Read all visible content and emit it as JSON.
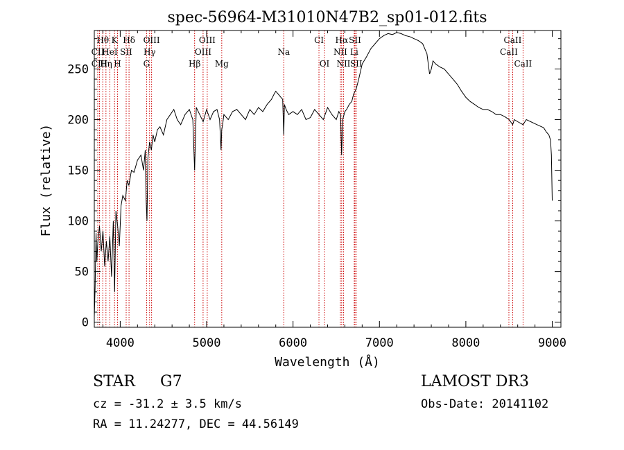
{
  "chart_data": {
    "type": "line",
    "title": "spec-56964-M31010N47B2_sp01-012.fits",
    "xlabel": "Wavelength (Å)",
    "ylabel": "Flux (relative)",
    "xlim": [
      3700,
      9100
    ],
    "ylim": [
      -5,
      288
    ],
    "x_ticks": [
      4000,
      5000,
      6000,
      7000,
      8000,
      9000
    ],
    "y_ticks": [
      0,
      50,
      100,
      150,
      200,
      250
    ],
    "grid": false,
    "line_color": "#000000",
    "marker_color": "#cc0000",
    "series": [
      {
        "x": [
          3700,
          3710,
          3720,
          3730,
          3740,
          3760,
          3780,
          3800,
          3820,
          3840,
          3860,
          3880,
          3900,
          3920,
          3935,
          3950,
          3970,
          3990,
          4010,
          4030,
          4060,
          4080,
          4100,
          4130,
          4160,
          4200,
          4240,
          4270,
          4290,
          4300,
          4310,
          4320,
          4340,
          4360,
          4380,
          4400,
          4430,
          4460,
          4500,
          4540,
          4580,
          4620,
          4660,
          4700,
          4750,
          4800,
          4840,
          4861,
          4880,
          4920,
          4960,
          5000,
          5040,
          5080,
          5120,
          5150,
          5167,
          5175,
          5185,
          5200,
          5250,
          5300,
          5350,
          5400,
          5450,
          5500,
          5550,
          5600,
          5650,
          5700,
          5750,
          5780,
          5800,
          5830,
          5860,
          5880,
          5893,
          5900,
          5920,
          5950,
          6000,
          6050,
          6100,
          6150,
          6200,
          6250,
          6300,
          6350,
          6400,
          6450,
          6500,
          6530,
          6550,
          6562,
          6575,
          6590,
          6600,
          6620,
          6650,
          6680,
          6700,
          6730,
          6760,
          6800,
          6850,
          6900,
          6950,
          7000,
          7050,
          7100,
          7150,
          7200,
          7250,
          7300,
          7350,
          7400,
          7450,
          7500,
          7550,
          7580,
          7600,
          7620,
          7650,
          7700,
          7750,
          7800,
          7850,
          7900,
          7950,
          8000,
          8050,
          8100,
          8150,
          8200,
          8250,
          8300,
          8350,
          8400,
          8450,
          8500,
          8542,
          8560,
          8600,
          8662,
          8700,
          8750,
          8800,
          8850,
          8900,
          8930,
          8960,
          8980,
          8990,
          9000
        ],
        "y": [
          5,
          35,
          88,
          60,
          78,
          95,
          70,
          90,
          55,
          80,
          60,
          85,
          45,
          100,
          30,
          110,
          95,
          75,
          115,
          125,
          120,
          140,
          135,
          150,
          148,
          160,
          165,
          150,
          170,
          120,
          100,
          162,
          178,
          170,
          185,
          178,
          190,
          193,
          185,
          200,
          205,
          210,
          200,
          195,
          205,
          210,
          200,
          150,
          212,
          205,
          198,
          210,
          200,
          208,
          210,
          200,
          170,
          190,
          195,
          205,
          200,
          208,
          210,
          205,
          200,
          210,
          205,
          212,
          208,
          215,
          220,
          225,
          228,
          225,
          222,
          220,
          185,
          215,
          210,
          205,
          208,
          205,
          210,
          200,
          202,
          210,
          205,
          200,
          212,
          205,
          200,
          208,
          205,
          165,
          200,
          205,
          208,
          210,
          215,
          218,
          225,
          230,
          240,
          255,
          262,
          270,
          275,
          280,
          283,
          285,
          284,
          286,
          285,
          283,
          282,
          280,
          278,
          275,
          265,
          245,
          250,
          258,
          255,
          252,
          250,
          245,
          240,
          235,
          228,
          222,
          218,
          215,
          212,
          210,
          210,
          208,
          205,
          205,
          203,
          200,
          195,
          200,
          198,
          195,
          200,
          198,
          196,
          194,
          192,
          188,
          185,
          180,
          165,
          120
        ]
      }
    ],
    "lines_top_row": [
      {
        "label": "Hθ",
        "x": 3798
      },
      {
        "label": "K",
        "x": 3934
      },
      {
        "label": "Hδ",
        "x": 4102
      },
      {
        "label": "OIII",
        "x": 4363
      },
      {
        "label": "OIII",
        "x": 5007
      },
      {
        "label": "CI",
        "x": 6300
      },
      {
        "label": "Hα",
        "x": 6563
      },
      {
        "label": "SII",
        "x": 6717
      },
      {
        "label": "CaII",
        "x": 8542
      }
    ],
    "lines_mid_row": [
      {
        "label": "CII",
        "x": 3740
      },
      {
        "label": "HeI",
        "x": 3880
      },
      {
        "label": "SII",
        "x": 4069
      },
      {
        "label": "Hγ",
        "x": 4340
      },
      {
        "label": "OIII",
        "x": 4959
      },
      {
        "label": "Na",
        "x": 5893
      },
      {
        "label": "NII",
        "x": 6548
      },
      {
        "label": "Li",
        "x": 6708
      },
      {
        "label": "CaII",
        "x": 8498
      }
    ],
    "lines_bottom_row": [
      {
        "label": "CIII",
        "x": 3760
      },
      {
        "label": "Hη",
        "x": 3835
      },
      {
        "label": "H",
        "x": 3969
      },
      {
        "label": "G",
        "x": 4305
      },
      {
        "label": "Hβ",
        "x": 4861
      },
      {
        "label": "Mg",
        "x": 5175
      },
      {
        "label": "OI",
        "x": 6364
      },
      {
        "label": "NII",
        "x": 6584
      },
      {
        "label": "SII",
        "x": 6731
      },
      {
        "label": "CaII",
        "x": 8662
      }
    ],
    "info": {
      "class_label": "STAR",
      "subclass": "G7",
      "redshift": "cz = -31.2 ± 3.5 km/s",
      "coords": "RA =  11.24277, DEC =  44.56149",
      "survey": "LAMOST DR3",
      "obs_date": "Obs-Date: 20141102"
    }
  }
}
